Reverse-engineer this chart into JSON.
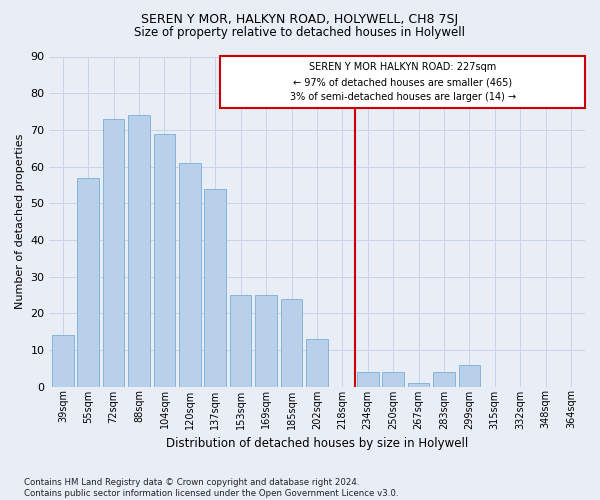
{
  "title": "SEREN Y MOR, HALKYN ROAD, HOLYWELL, CH8 7SJ",
  "subtitle": "Size of property relative to detached houses in Holywell",
  "xlabel": "Distribution of detached houses by size in Holywell",
  "ylabel": "Number of detached properties",
  "categories": [
    "39sqm",
    "55sqm",
    "72sqm",
    "88sqm",
    "104sqm",
    "120sqm",
    "137sqm",
    "153sqm",
    "169sqm",
    "185sqm",
    "202sqm",
    "218sqm",
    "234sqm",
    "250sqm",
    "267sqm",
    "283sqm",
    "299sqm",
    "315sqm",
    "332sqm",
    "348sqm",
    "364sqm"
  ],
  "values": [
    14,
    57,
    73,
    74,
    69,
    61,
    54,
    25,
    25,
    24,
    13,
    0,
    4,
    4,
    1,
    4,
    6,
    0,
    0,
    0,
    0
  ],
  "bar_color": "#b8d0ea",
  "bar_edge_color": "#7aafd4",
  "grid_color": "#c8d4e8",
  "background_color": "#e8edf6",
  "annotation_text_line1": "SEREN Y MOR HALKYN ROAD: 227sqm",
  "annotation_text_line2": "← 97% of detached houses are smaller (465)",
  "annotation_text_line3": "3% of semi-detached houses are larger (14) →",
  "annotation_box_color": "#cc0000",
  "vline_color": "#cc0000",
  "ylim": [
    0,
    90
  ],
  "yticks": [
    0,
    10,
    20,
    30,
    40,
    50,
    60,
    70,
    80,
    90
  ],
  "footnote": "Contains HM Land Registry data © Crown copyright and database right 2024.\nContains public sector information licensed under the Open Government Licence v3.0."
}
